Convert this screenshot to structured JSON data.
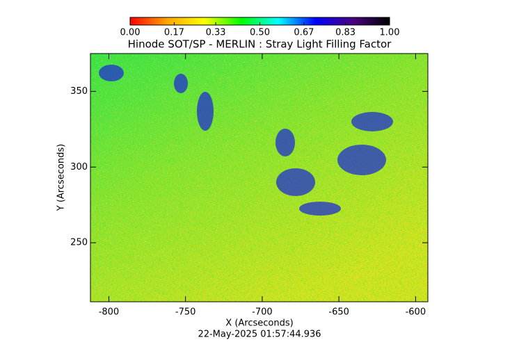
{
  "chart_data": {
    "type": "heatmap",
    "title": "Hinode SOT/SP - MERLIN : Stray Light Filling Factor",
    "xlabel": "X (Arcseconds)",
    "ylabel": "Y (Arcseconds)",
    "footer": "22-May-2025 01:57:44.936",
    "xlim": [
      -812,
      -592
    ],
    "xticks": [
      -800,
      -750,
      -700,
      -650,
      -600
    ],
    "ylim": [
      211,
      375
    ],
    "yticks": [
      250,
      300,
      350
    ],
    "colorbar": {
      "lim": [
        0,
        1
      ],
      "ticks": [
        {
          "value": 0,
          "label": "0.00"
        },
        {
          "value": 0.17,
          "label": "0.17"
        },
        {
          "value": 0.33,
          "label": "0.33"
        },
        {
          "value": 0.5,
          "label": "0.50"
        },
        {
          "value": 0.67,
          "label": "0.67"
        },
        {
          "value": 0.83,
          "label": "0.83"
        },
        {
          "value": 1,
          "label": "1.00"
        }
      ],
      "colors": [
        "#ff0000",
        "#ffa500",
        "#ffff00",
        "#00ff00",
        "#00ffff",
        "#0000ff",
        "#4b0082",
        "#000000"
      ]
    }
  }
}
